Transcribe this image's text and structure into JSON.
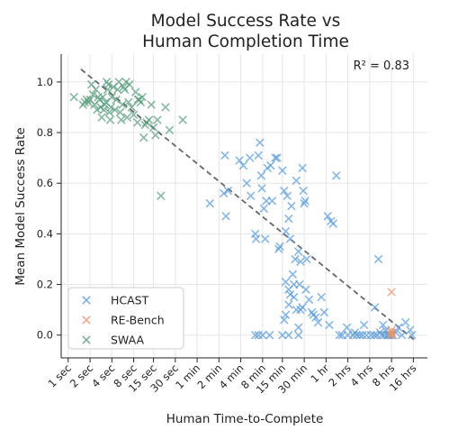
{
  "chart_data": {
    "type": "scatter",
    "title_lines": [
      "Model Success Rate vs",
      "Human Completion Time"
    ],
    "xlabel": "Human Time-to-Complete",
    "ylabel": "Mean Model Success Rate",
    "x_scale": "log",
    "x_unit": "seconds",
    "x_ticks": [
      {
        "value": 1,
        "label": "1 sec"
      },
      {
        "value": 2,
        "label": "2 sec"
      },
      {
        "value": 4,
        "label": "4 sec"
      },
      {
        "value": 8,
        "label": "8 sec"
      },
      {
        "value": 15,
        "label": "15 sec"
      },
      {
        "value": 30,
        "label": "30 sec"
      },
      {
        "value": 60,
        "label": "1 min"
      },
      {
        "value": 120,
        "label": "2 min"
      },
      {
        "value": 240,
        "label": "4 min"
      },
      {
        "value": 480,
        "label": "8 min"
      },
      {
        "value": 900,
        "label": "15 min"
      },
      {
        "value": 1800,
        "label": "30 min"
      },
      {
        "value": 3600,
        "label": "1 hr"
      },
      {
        "value": 7200,
        "label": "2 hrs"
      },
      {
        "value": 14400,
        "label": "4 hrs"
      },
      {
        "value": 28800,
        "label": "8 hrs"
      },
      {
        "value": 57600,
        "label": "16 hrs"
      }
    ],
    "y_ticks": [
      {
        "value": 0.0,
        "label": "0.0"
      },
      {
        "value": 0.2,
        "label": "0.2"
      },
      {
        "value": 0.4,
        "label": "0.4"
      },
      {
        "value": 0.6,
        "label": "0.6"
      },
      {
        "value": 0.8,
        "label": "0.8"
      },
      {
        "value": 1.0,
        "label": "1.0"
      }
    ],
    "xlim": [
      0.8,
      90000
    ],
    "ylim": [
      -0.09,
      1.11
    ],
    "grid": true,
    "legend_position": "lower-left",
    "annotation": "R² = 0.83",
    "fit_line": {
      "x": [
        1.5,
        60000
      ],
      "y": [
        1.05,
        -0.02
      ]
    },
    "series": [
      {
        "name": "HCAST",
        "color": "#5b9bd5",
        "points": [
          [
            90,
            0.52
          ],
          [
            140,
            0.56
          ],
          [
            145,
            0.71
          ],
          [
            150,
            0.47
          ],
          [
            160,
            0.57
          ],
          [
            230,
            0.69
          ],
          [
            260,
            0.67
          ],
          [
            290,
            0.6
          ],
          [
            320,
            0.7
          ],
          [
            330,
            0.55
          ],
          [
            380,
            0.4
          ],
          [
            390,
            0.38
          ],
          [
            420,
            0.71
          ],
          [
            440,
            0.76
          ],
          [
            460,
            0.63
          ],
          [
            470,
            0.58
          ],
          [
            500,
            0.5
          ],
          [
            520,
            0.38
          ],
          [
            540,
            0.53
          ],
          [
            560,
            0.66
          ],
          [
            620,
            0.67
          ],
          [
            650,
            0.53
          ],
          [
            720,
            0.7
          ],
          [
            760,
            0.7
          ],
          [
            800,
            0.34
          ],
          [
            830,
            0.35
          ],
          [
            900,
            0.65
          ],
          [
            950,
            0.57
          ],
          [
            1000,
            0.41
          ],
          [
            1050,
            0.55
          ],
          [
            1100,
            0.46
          ],
          [
            1150,
            0.38
          ],
          [
            1200,
            0.51
          ],
          [
            1250,
            0.24
          ],
          [
            1300,
            0.15
          ],
          [
            1350,
            0.3
          ],
          [
            1400,
            0.61
          ],
          [
            1500,
            0.33
          ],
          [
            1550,
            0.2
          ],
          [
            1600,
            0.29
          ],
          [
            1700,
            0.66
          ],
          [
            1750,
            0.57
          ],
          [
            1800,
            0.52
          ],
          [
            1850,
            0.53
          ],
          [
            1950,
            0.3
          ],
          [
            1000,
            0.21
          ],
          [
            1100,
            0.18
          ],
          [
            1150,
            0.16
          ],
          [
            1000,
            0.08
          ],
          [
            950,
            0.06
          ],
          [
            1100,
            0.12
          ],
          [
            1300,
            0.2
          ],
          [
            1400,
            0.1
          ],
          [
            1500,
            0.03
          ],
          [
            1600,
            0.1
          ],
          [
            1700,
            0.11
          ],
          [
            1900,
            0.18
          ],
          [
            2100,
            0.14
          ],
          [
            2300,
            0.09
          ],
          [
            2400,
            0.08
          ],
          [
            2600,
            0.07
          ],
          [
            2800,
            0.05
          ],
          [
            3100,
            0.15
          ],
          [
            3400,
            0.09
          ],
          [
            3800,
            0.47
          ],
          [
            4200,
            0.45
          ],
          [
            4500,
            0.44
          ],
          [
            5000,
            0.63
          ],
          [
            4000,
            0.04
          ],
          [
            7000,
            0.03
          ],
          [
            9000,
            0.01
          ],
          [
            12000,
            0.04
          ],
          [
            19000,
            0.3
          ],
          [
            17000,
            0.11
          ],
          [
            22000,
            0.04
          ],
          [
            24000,
            0.02
          ],
          [
            20000,
            0.01
          ],
          [
            26000,
            0.0
          ],
          [
            27000,
            0.0
          ],
          [
            30000,
            0.0
          ],
          [
            33000,
            0.01
          ],
          [
            36000,
            0.03
          ],
          [
            40000,
            0.0
          ],
          [
            45000,
            0.05
          ],
          [
            52000,
            0.02
          ],
          [
            55000,
            0.0
          ],
          [
            380,
            0.0
          ],
          [
            420,
            0.0
          ],
          [
            480,
            0.0
          ],
          [
            600,
            0.0
          ],
          [
            900,
            0.0
          ],
          [
            1100,
            0.0
          ],
          [
            1500,
            0.0
          ],
          [
            5500,
            0.0
          ],
          [
            6000,
            0.0
          ],
          [
            7200,
            0.0
          ],
          [
            8500,
            0.0
          ],
          [
            9500,
            0.0
          ],
          [
            10500,
            0.0
          ],
          [
            11500,
            0.0
          ],
          [
            13000,
            0.0
          ],
          [
            15000,
            0.0
          ],
          [
            16500,
            0.0
          ],
          [
            18000,
            0.0
          ],
          [
            21000,
            0.0
          ],
          [
            23000,
            0.0
          ],
          [
            25000,
            0.0
          ]
        ]
      },
      {
        "name": "RE-Bench",
        "color": "#e8956f",
        "points": [
          [
            28800,
            0.17
          ],
          [
            28800,
            0.02
          ],
          [
            28800,
            0.01
          ],
          [
            28800,
            0.0
          ],
          [
            28800,
            0.0
          ],
          [
            28800,
            0.01
          ],
          [
            28800,
            0.0
          ]
        ]
      },
      {
        "name": "SWAA",
        "color": "#5c9c7e",
        "points": [
          [
            1.2,
            0.94
          ],
          [
            1.6,
            0.91
          ],
          [
            1.7,
            0.92
          ],
          [
            1.8,
            0.93
          ],
          [
            1.9,
            0.92
          ],
          [
            2.0,
            0.93
          ],
          [
            2.1,
            0.99
          ],
          [
            2.2,
            0.95
          ],
          [
            2.3,
            0.91
          ],
          [
            2.4,
            0.97
          ],
          [
            2.5,
            0.89
          ],
          [
            2.6,
            0.94
          ],
          [
            2.7,
            0.93
          ],
          [
            2.8,
            0.9
          ],
          [
            2.9,
            0.86
          ],
          [
            3.0,
            0.94
          ],
          [
            3.1,
            0.89
          ],
          [
            3.2,
            0.91
          ],
          [
            3.3,
            0.92
          ],
          [
            3.4,
            1.0
          ],
          [
            3.5,
            0.97
          ],
          [
            3.6,
            0.99
          ],
          [
            3.7,
            0.88
          ],
          [
            3.8,
            0.85
          ],
          [
            3.9,
            0.9
          ],
          [
            4.0,
            0.94
          ],
          [
            4.2,
            0.98
          ],
          [
            4.4,
            0.89
          ],
          [
            4.6,
            0.93
          ],
          [
            4.8,
            0.97
          ],
          [
            5.0,
            1.0
          ],
          [
            5.2,
            0.88
          ],
          [
            5.4,
            0.85
          ],
          [
            5.6,
            0.91
          ],
          [
            5.8,
            0.98
          ],
          [
            6.0,
            0.97
          ],
          [
            6.3,
            1.0
          ],
          [
            6.5,
            0.86
          ],
          [
            7.0,
            0.99
          ],
          [
            7.5,
            0.9
          ],
          [
            8.0,
            0.87
          ],
          [
            8.5,
            0.96
          ],
          [
            9.0,
            0.84
          ],
          [
            9.5,
            0.93
          ],
          [
            10,
            0.92
          ],
          [
            11,
            0.78
          ],
          [
            11.5,
            0.83
          ],
          [
            12,
            0.84
          ],
          [
            13,
            0.85
          ],
          [
            14,
            0.91
          ],
          [
            15,
            0.82
          ],
          [
            16,
            0.79
          ],
          [
            17,
            0.85
          ],
          [
            19,
            0.55
          ],
          [
            22,
            0.9
          ],
          [
            25,
            0.81
          ],
          [
            38,
            0.85
          ],
          [
            6.8,
            0.92
          ],
          [
            9.2,
            0.93
          ],
          [
            10.5,
            0.94
          ]
        ]
      }
    ]
  }
}
